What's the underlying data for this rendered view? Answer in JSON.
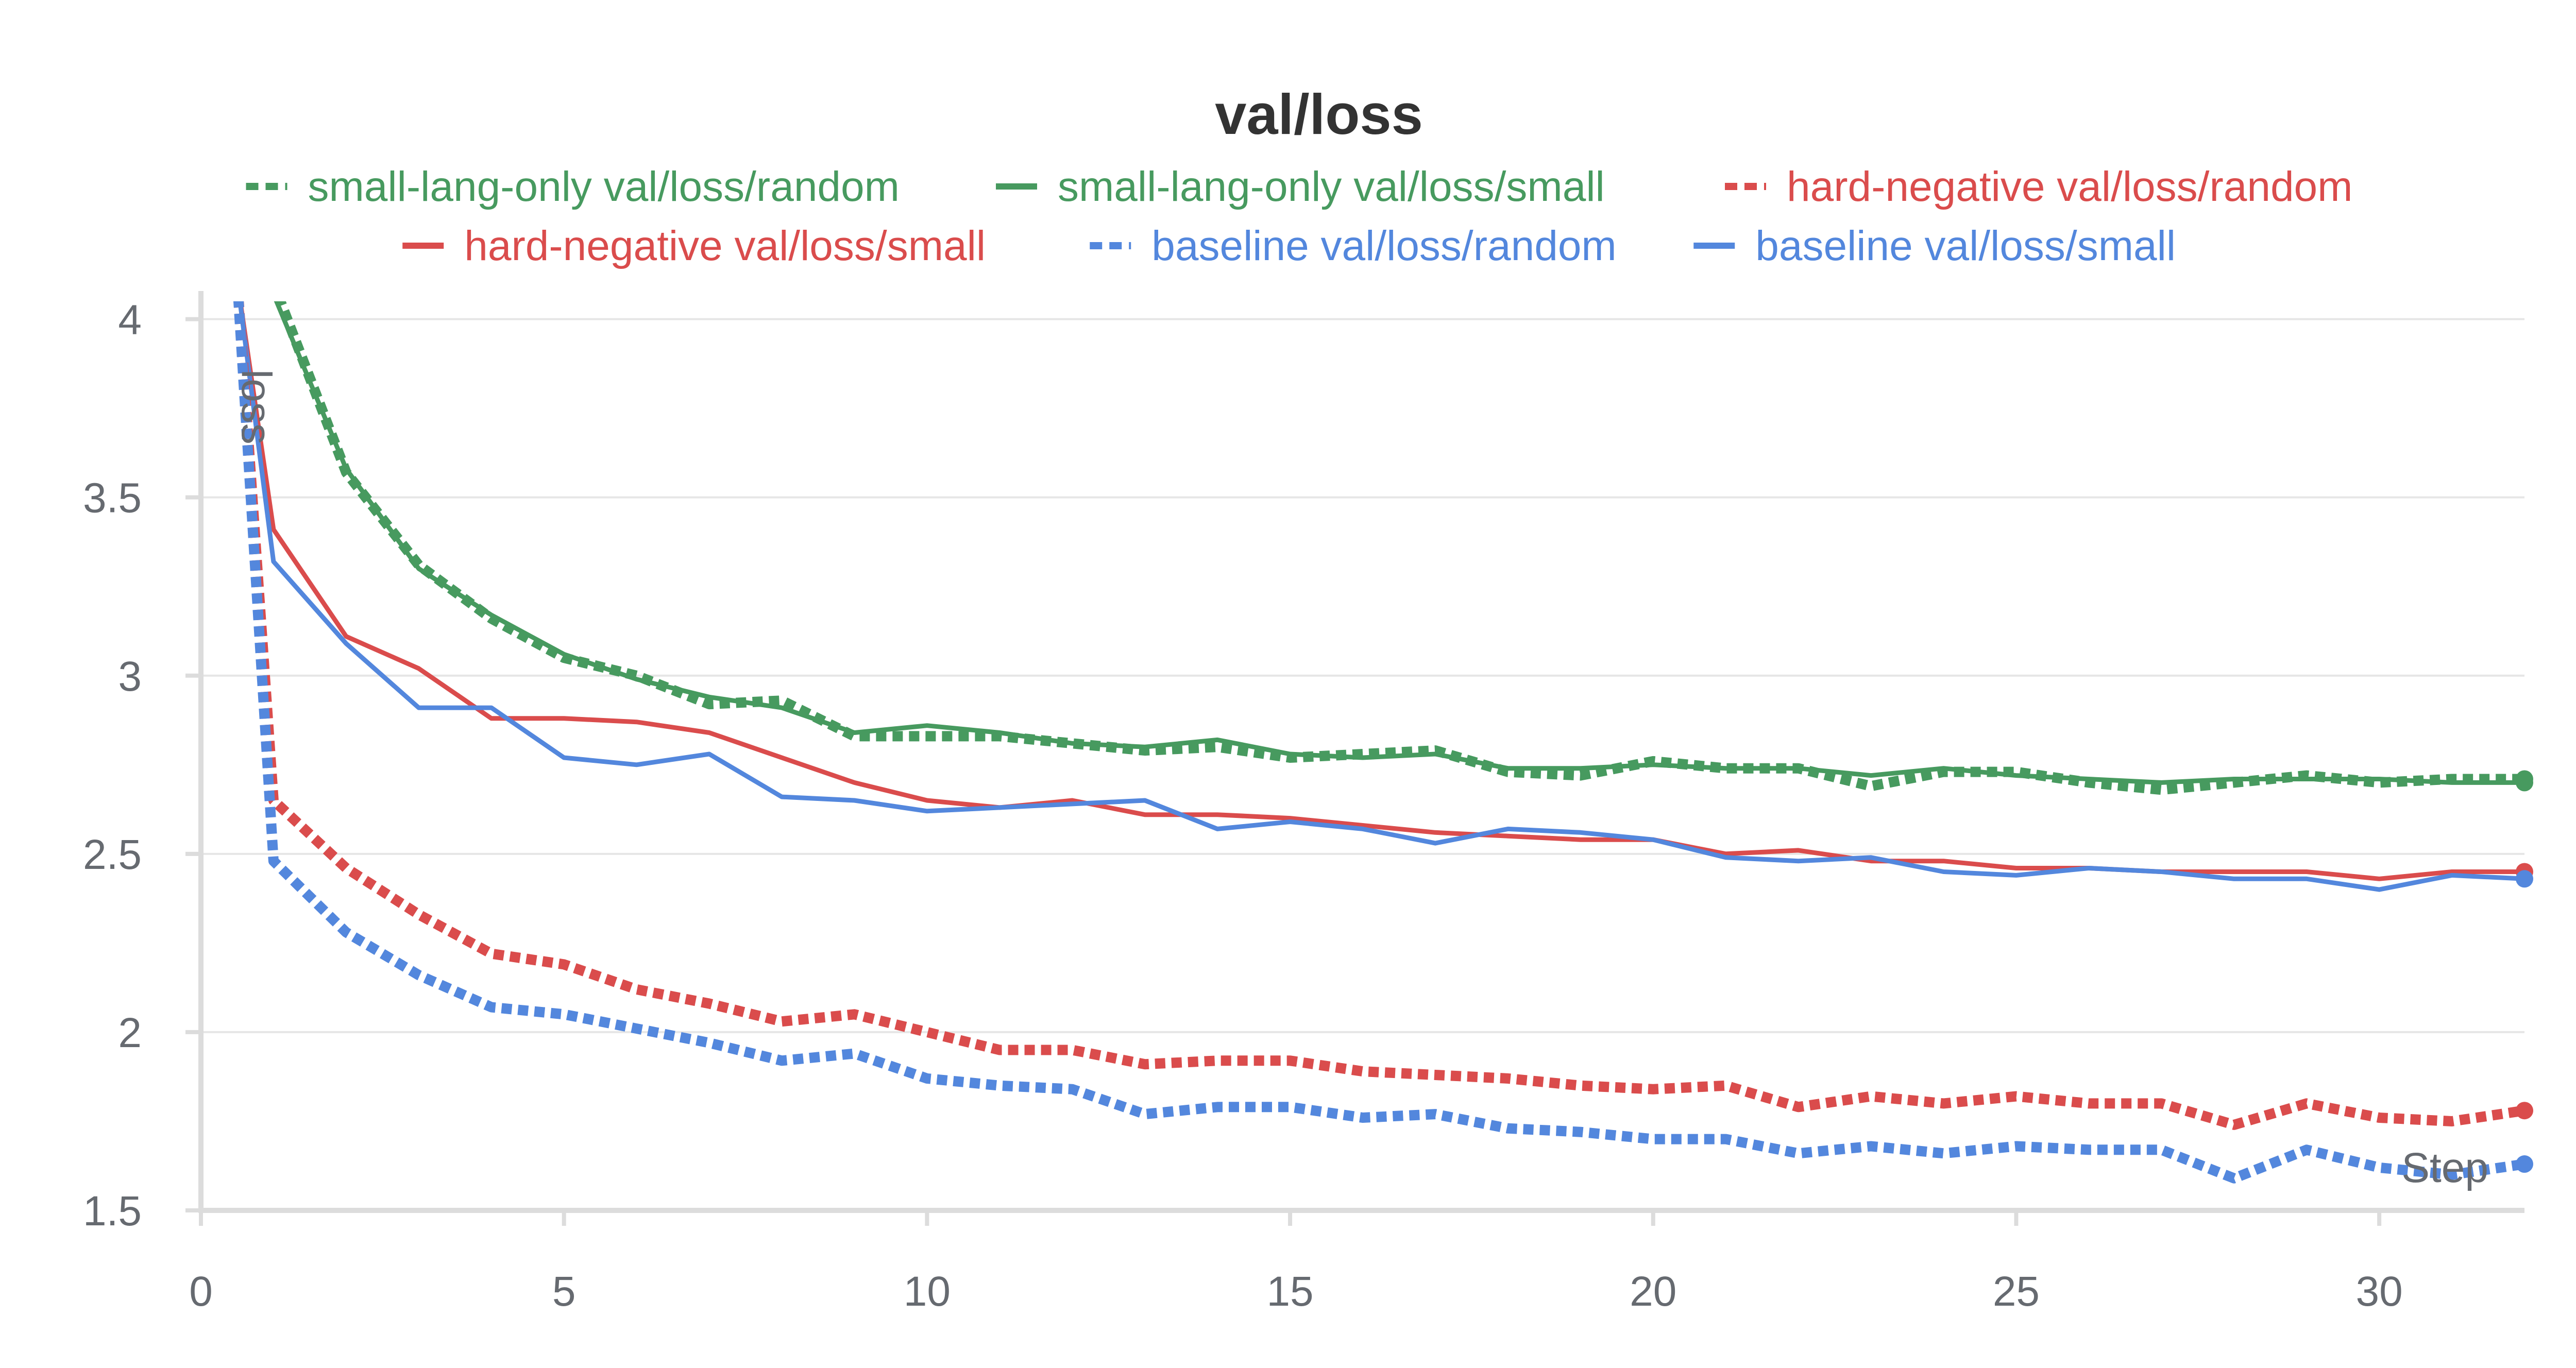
{
  "chart_data": {
    "type": "line",
    "title": "val/loss",
    "xlabel": "Step",
    "ylabel": "loss",
    "xlim": [
      0,
      32
    ],
    "ylim": [
      1.5,
      4.05
    ],
    "x_ticks": [
      0,
      5,
      10,
      15,
      20,
      25,
      30
    ],
    "y_ticks": [
      1.5,
      2,
      2.5,
      3,
      3.5,
      4
    ],
    "x_tick_labels": [
      "0",
      "5",
      "10",
      "15",
      "20",
      "25",
      "30"
    ],
    "y_tick_labels": [
      "1.5",
      "2",
      "2.5",
      "3",
      "3.5",
      "4"
    ],
    "grid": true,
    "legend_position": "top",
    "series": [
      {
        "name": "small-lang-only val/loss/random",
        "color": "#479a5f",
        "dash": "dashed",
        "x": [
          1,
          2,
          3,
          4,
          5,
          6,
          7,
          8,
          9,
          10,
          11,
          12,
          13,
          14,
          15,
          16,
          17,
          18,
          19,
          20,
          21,
          22,
          23,
          24,
          25,
          26,
          27,
          28,
          29,
          30,
          31,
          32
        ],
        "y": [
          4.1,
          3.57,
          3.31,
          3.16,
          3.05,
          3.0,
          2.92,
          2.93,
          2.83,
          2.83,
          2.83,
          2.81,
          2.79,
          2.8,
          2.77,
          2.78,
          2.79,
          2.73,
          2.72,
          2.76,
          2.74,
          2.74,
          2.69,
          2.73,
          2.73,
          2.7,
          2.68,
          2.7,
          2.72,
          2.7,
          2.71,
          2.71
        ]
      },
      {
        "name": "small-lang-only val/loss/small",
        "color": "#479a5f",
        "dash": "solid",
        "x": [
          1,
          2,
          3,
          4,
          5,
          6,
          7,
          8,
          9,
          10,
          11,
          12,
          13,
          14,
          15,
          16,
          17,
          18,
          19,
          20,
          21,
          22,
          23,
          24,
          25,
          26,
          27,
          28,
          29,
          30,
          31,
          32
        ],
        "y": [
          4.07,
          3.58,
          3.3,
          3.17,
          3.06,
          2.99,
          2.94,
          2.91,
          2.84,
          2.86,
          2.84,
          2.81,
          2.8,
          2.82,
          2.78,
          2.77,
          2.78,
          2.74,
          2.74,
          2.75,
          2.74,
          2.74,
          2.72,
          2.74,
          2.72,
          2.71,
          2.7,
          2.71,
          2.71,
          2.71,
          2.7,
          2.7
        ]
      },
      {
        "name": "hard-negative val/loss/random",
        "color": "#da4c4c",
        "dash": "dashed",
        "x": [
          1,
          2,
          3,
          4,
          5,
          6,
          7,
          8,
          9,
          10,
          11,
          12,
          13,
          14,
          15,
          16,
          17,
          18,
          19,
          20,
          21,
          22,
          23,
          24,
          25,
          26,
          27,
          28,
          29,
          30,
          31,
          32
        ],
        "y": [
          2.65,
          2.46,
          2.33,
          2.22,
          2.19,
          2.12,
          2.08,
          2.03,
          2.05,
          2.0,
          1.95,
          1.95,
          1.91,
          1.92,
          1.92,
          1.89,
          1.88,
          1.87,
          1.85,
          1.84,
          1.85,
          1.79,
          1.82,
          1.8,
          1.82,
          1.8,
          1.8,
          1.74,
          1.8,
          1.76,
          1.75,
          1.78
        ]
      },
      {
        "name": "hard-negative val/loss/small",
        "color": "#da4c4c",
        "dash": "solid",
        "x": [
          1,
          2,
          3,
          4,
          5,
          6,
          7,
          8,
          9,
          10,
          11,
          12,
          13,
          14,
          15,
          16,
          17,
          18,
          19,
          20,
          21,
          22,
          23,
          24,
          25,
          26,
          27,
          28,
          29,
          30,
          31,
          32
        ],
        "y": [
          3.41,
          3.11,
          3.02,
          2.88,
          2.88,
          2.87,
          2.84,
          2.77,
          2.7,
          2.65,
          2.63,
          2.65,
          2.61,
          2.61,
          2.6,
          2.58,
          2.56,
          2.55,
          2.54,
          2.54,
          2.5,
          2.51,
          2.48,
          2.48,
          2.46,
          2.46,
          2.45,
          2.45,
          2.45,
          2.43,
          2.45,
          2.45
        ]
      },
      {
        "name": "baseline val/loss/random",
        "color": "#5387dd",
        "dash": "dashed",
        "x": [
          1,
          2,
          3,
          4,
          5,
          6,
          7,
          8,
          9,
          10,
          11,
          12,
          13,
          14,
          15,
          16,
          17,
          18,
          19,
          20,
          21,
          22,
          23,
          24,
          25,
          26,
          27,
          28,
          29,
          30,
          31,
          32
        ],
        "y": [
          2.48,
          2.28,
          2.16,
          2.07,
          2.05,
          2.01,
          1.97,
          1.92,
          1.94,
          1.87,
          1.85,
          1.84,
          1.77,
          1.79,
          1.79,
          1.76,
          1.77,
          1.73,
          1.72,
          1.7,
          1.7,
          1.66,
          1.68,
          1.66,
          1.68,
          1.67,
          1.67,
          1.59,
          1.67,
          1.62,
          1.6,
          1.63
        ]
      },
      {
        "name": "baseline val/loss/small",
        "color": "#5387dd",
        "dash": "solid",
        "x": [
          1,
          2,
          3,
          4,
          5,
          6,
          7,
          8,
          9,
          10,
          11,
          12,
          13,
          14,
          15,
          16,
          17,
          18,
          19,
          20,
          21,
          22,
          23,
          24,
          25,
          26,
          27,
          28,
          29,
          30,
          31,
          32
        ],
        "y": [
          3.32,
          3.09,
          2.91,
          2.91,
          2.77,
          2.75,
          2.78,
          2.66,
          2.65,
          2.62,
          2.63,
          2.64,
          2.65,
          2.57,
          2.59,
          2.57,
          2.53,
          2.57,
          2.56,
          2.54,
          2.49,
          2.48,
          2.49,
          2.45,
          2.44,
          2.46,
          2.45,
          2.43,
          2.43,
          2.4,
          2.44,
          2.43
        ]
      }
    ]
  }
}
